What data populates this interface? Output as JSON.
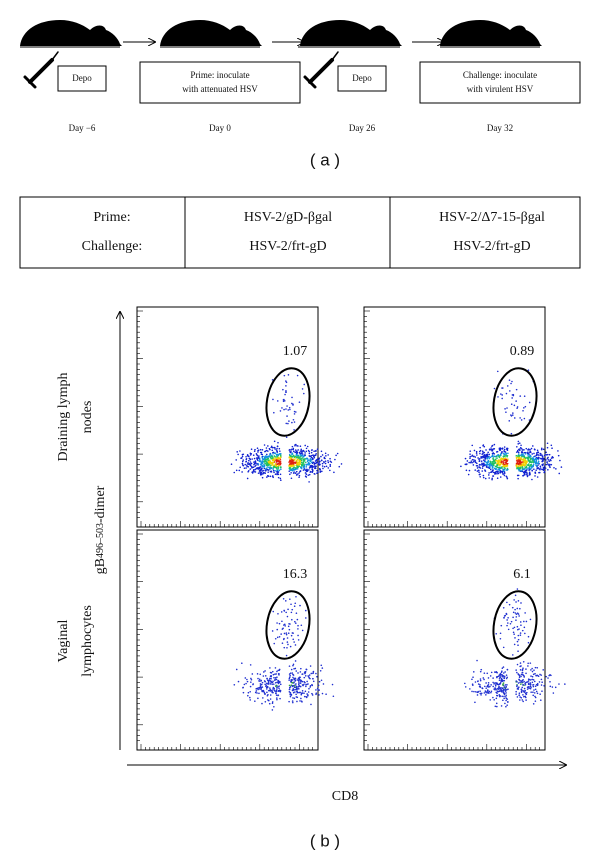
{
  "panel_a": {
    "steps": [
      {
        "box": [
          "Depo"
        ],
        "day": "Day −6"
      },
      {
        "box": [
          "Prime: inoculate",
          "with attenuated HSV"
        ],
        "day": "Day 0"
      },
      {
        "box": [
          "Depo"
        ],
        "day": "Day 26"
      },
      {
        "box": [
          "Challenge: inoculate",
          "with virulent HSV"
        ],
        "day": "Day 32"
      }
    ],
    "label": "( a )"
  },
  "table": {
    "rows": [
      [
        "Prime:",
        "HSV-2/gD-βgal",
        "HSV-2/Δ7-15-βgal"
      ],
      [
        "Challenge:",
        "HSV-2/frt-gD",
        "HSV-2/frt-gD"
      ]
    ]
  },
  "panel_b": {
    "y_axis": {
      "base": "gB",
      "sub": "496–503",
      "suffix": "-dimer"
    },
    "x_axis": "CD8",
    "row_labels": [
      [
        "Draining lymph",
        "nodes"
      ],
      [
        "Vaginal",
        "lymphocytes"
      ]
    ],
    "gate_values": [
      [
        1.07,
        0.89
      ],
      [
        16.3,
        6.1
      ]
    ],
    "label": "( b )"
  }
}
